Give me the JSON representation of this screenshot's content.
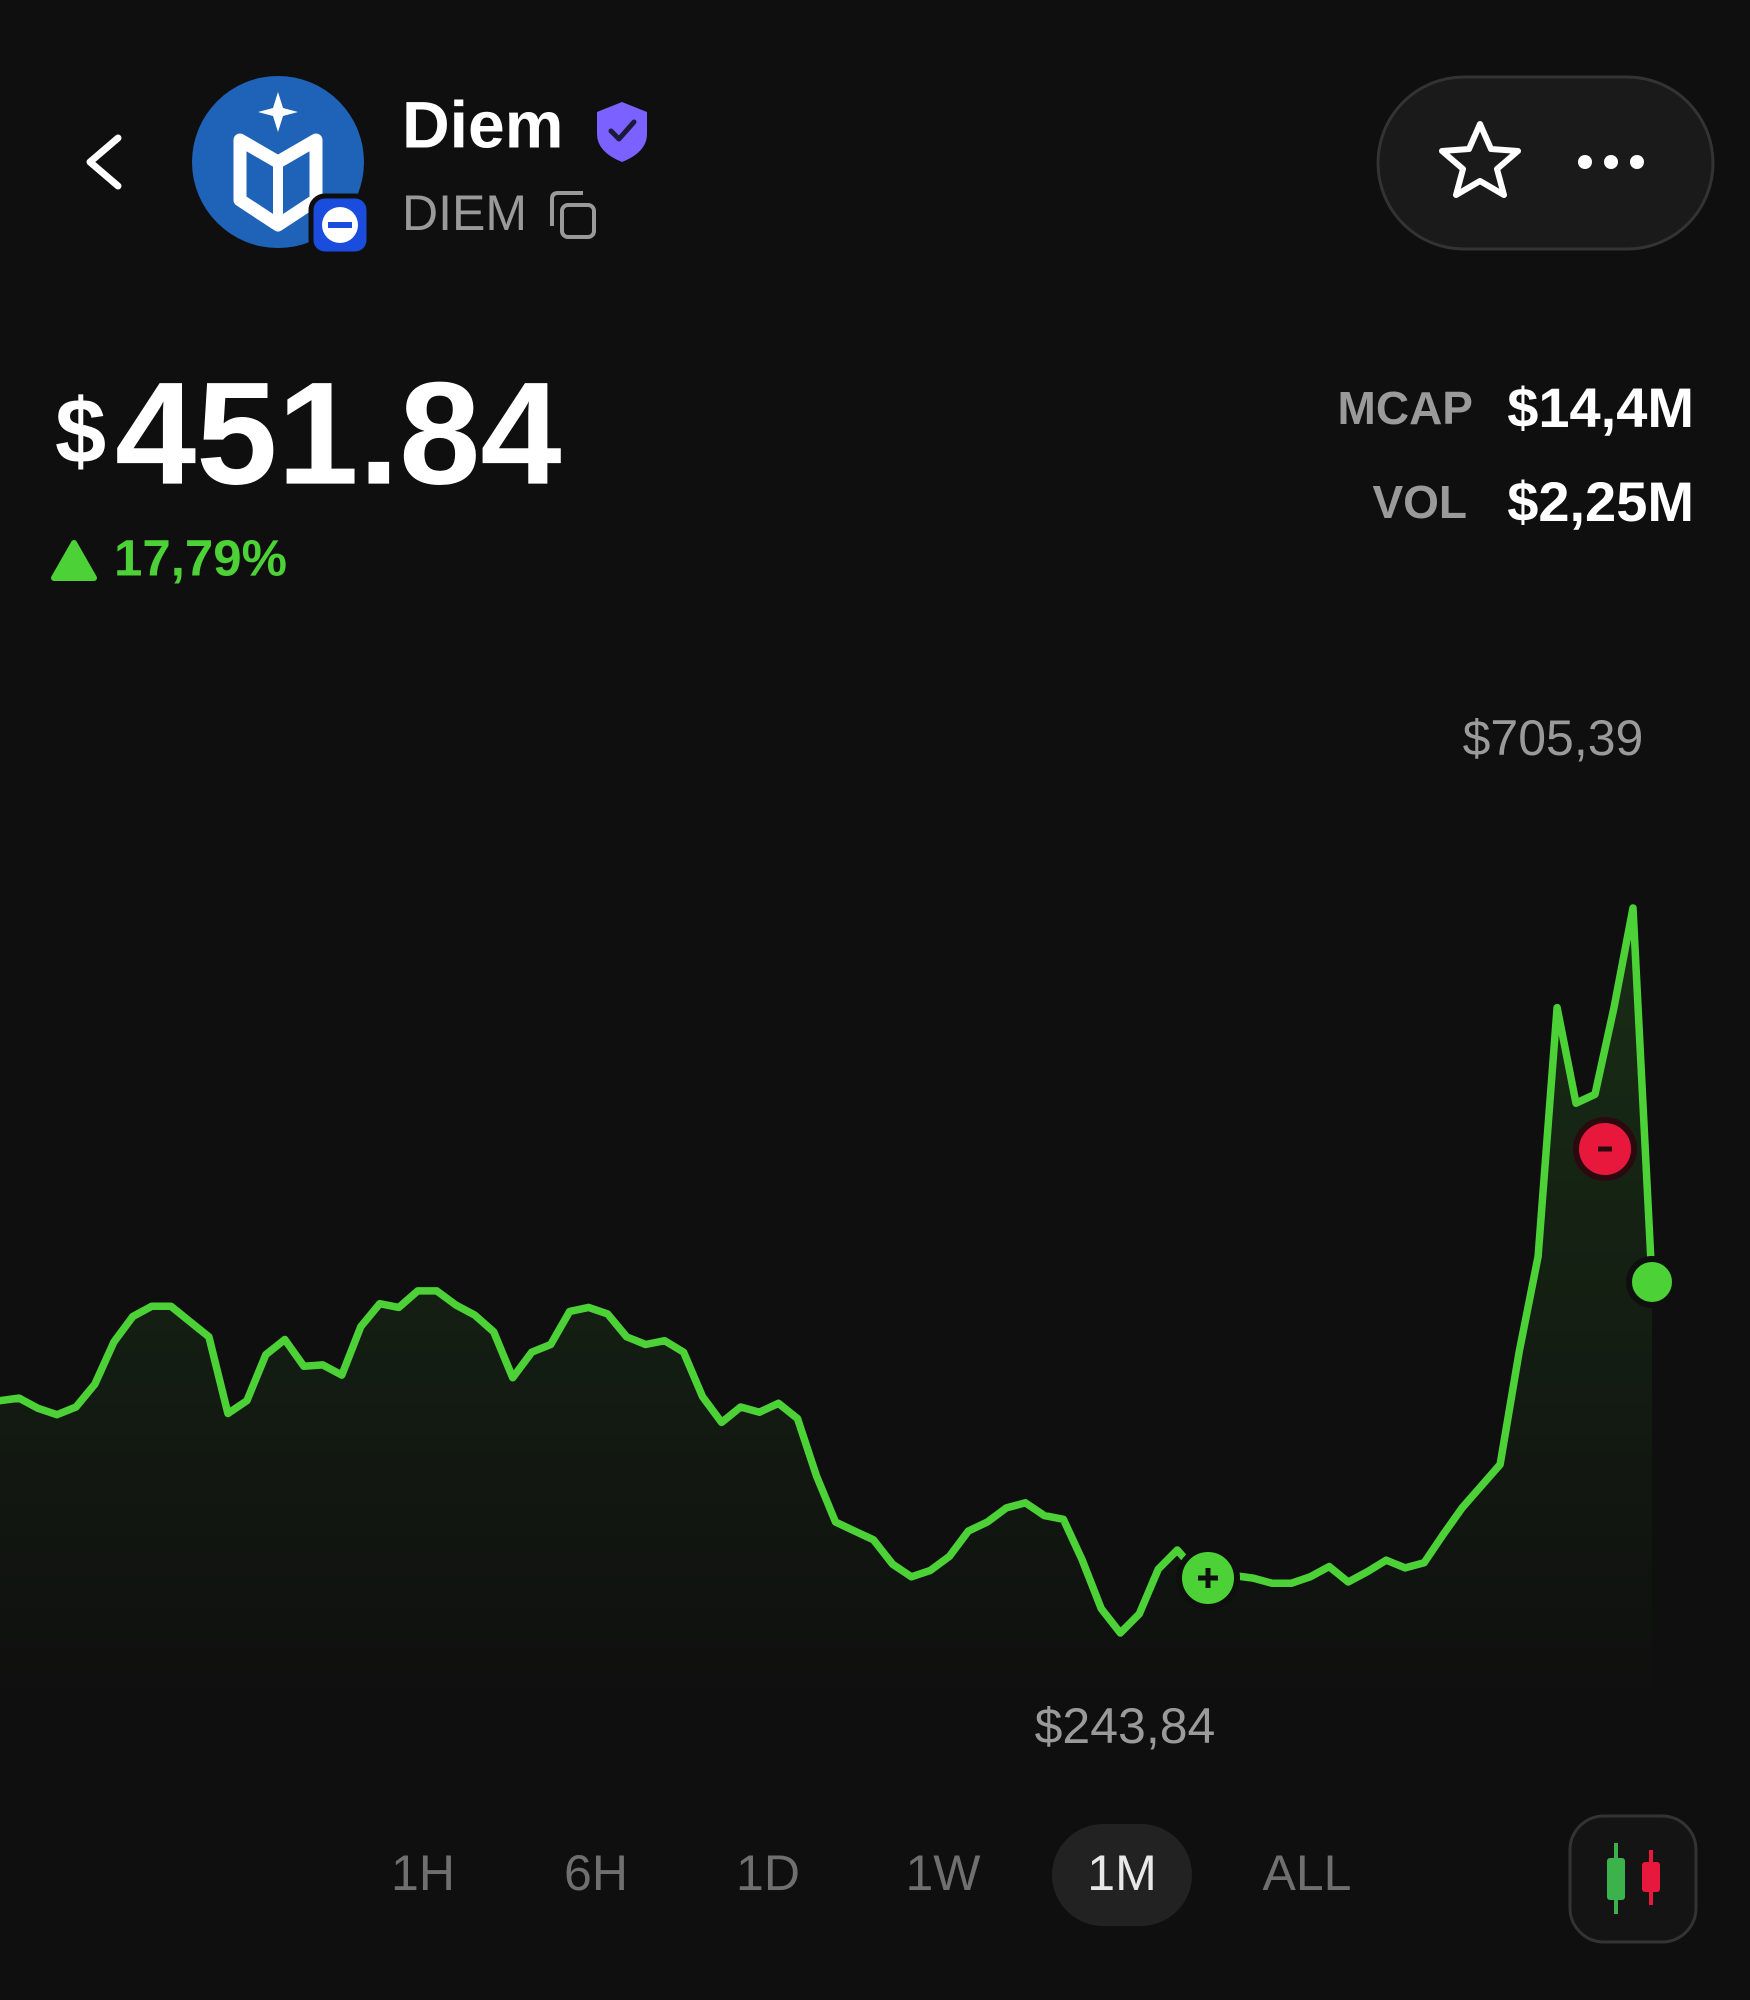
{
  "header": {
    "name": "Diem",
    "ticker": "DIEM"
  },
  "price": {
    "currency": "$",
    "amount": "451.84",
    "change": "17,79%"
  },
  "stats": [
    {
      "label": "MCAP",
      "value": "$14,4M"
    },
    {
      "label": "VOL",
      "value": "$2,25M"
    }
  ],
  "chart_data": {
    "type": "line",
    "color": "#4cd137",
    "max_label": "$705,39",
    "min_label": "$243,84",
    "values": [
      391.7,
      393.4,
      386.9,
      382.8,
      387.7,
      402.3,
      429.1,
      445.4,
      451.9,
      451.9,
      442.1,
      432.4,
      383.6,
      391.7,
      421.0,
      430.7,
      413.7,
      414.5,
      408.0,
      438.9,
      453.5,
      451.1,
      461.6,
      461.6,
      452.7,
      446.2,
      435.6,
      406.4,
      422.6,
      427.5,
      448.6,
      451.1,
      447.0,
      432.4,
      427.5,
      429.9,
      422.6,
      394.2,
      377.9,
      387.7,
      384.4,
      390.1,
      380.3,
      343.8,
      314.5,
      308.8,
      303.2,
      287.7,
      279.6,
      283.7,
      292.6,
      308.8,
      314.5,
      323.5,
      326.7,
      318.6,
      316.2,
      290.2,
      259.3,
      243.84,
      256.0,
      284.5,
      296.7,
      282.8,
      278.8,
      280.4,
      278.8,
      275.5,
      275.5,
      279.6,
      286.1,
      276.3,
      282.8,
      290.2,
      285.3,
      288.5,
      306.4,
      323.5,
      337.3,
      351.1,
      422.6,
      483.5,
      642.0,
      581.1,
      586.8,
      642.0,
      705.39,
      467.3
    ]
  },
  "ranges": [
    "1H",
    "6H",
    "1D",
    "1W",
    "1M",
    "ALL"
  ],
  "selected_range": "1M"
}
